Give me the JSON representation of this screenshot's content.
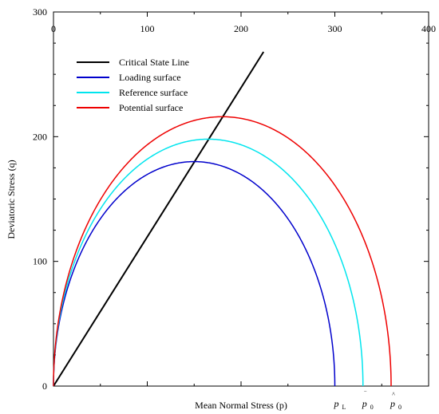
{
  "chart_data": {
    "type": "line",
    "xlabel": "Mean Normal Stress (p)",
    "ylabel": "Deviatoric Stress (q)",
    "xlim": [
      0,
      400
    ],
    "ylim": [
      0,
      300
    ],
    "x_ticks": [
      "0",
      "100",
      "200",
      "300",
      "400"
    ],
    "y_ticks": [
      "0",
      "100",
      "200",
      "300"
    ],
    "grid": false,
    "legend_position": "top-left",
    "legend": [
      {
        "label": "Critical State Line",
        "color": "#000000"
      },
      {
        "label": "Loading surface",
        "color": "#0000cc"
      },
      {
        "label": "Reference surface",
        "color": "#00e5ee"
      },
      {
        "label": "Potential surface",
        "color": "#ee0000"
      }
    ],
    "series": [
      {
        "name": "Critical State Line",
        "color": "#000000",
        "kind": "line",
        "x": [
          0,
          224
        ],
        "y": [
          0,
          268
        ]
      },
      {
        "name": "Loading surface",
        "color": "#0000cc",
        "kind": "ellipse",
        "p0": 300,
        "qmax": 180
      },
      {
        "name": "Reference surface",
        "color": "#00e5ee",
        "kind": "ellipse",
        "p0": 330,
        "qmax": 198
      },
      {
        "name": "Potential surface",
        "color": "#ee0000",
        "kind": "ellipse",
        "p0": 360,
        "qmax": 216
      }
    ],
    "annotations": [
      {
        "symbol": "p",
        "sub": "L",
        "x": 300,
        "accent": ""
      },
      {
        "symbol": "p",
        "sub": "0",
        "x": 330,
        "accent": "‾"
      },
      {
        "symbol": "p",
        "sub": "0",
        "x": 360,
        "accent": "^"
      }
    ]
  }
}
